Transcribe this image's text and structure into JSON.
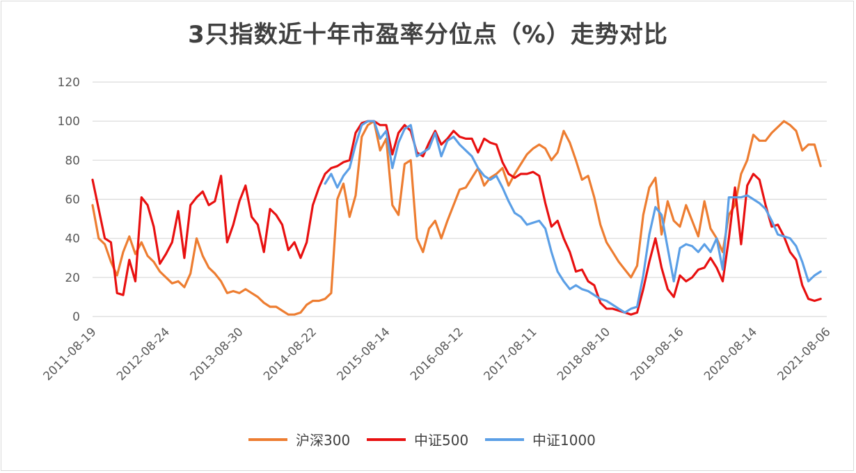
{
  "chart_data": {
    "type": "line",
    "title": "3只指数近十年市盈率分位点（%）走势对比",
    "xlabel": "",
    "ylabel": "",
    "ylim": [
      0,
      120
    ],
    "yticks": [
      "0",
      "20",
      "40",
      "60",
      "80",
      "100",
      "120"
    ],
    "xticks": [
      "2011-08-19",
      "2012-08-24",
      "2013-08-30",
      "2014-08-22",
      "2015-08-14",
      "2016-08-12",
      "2017-08-11",
      "2018-08-10",
      "2019-08-16",
      "2020-08-14",
      "2021-08-06"
    ],
    "grid": true,
    "legend_position": "bottom",
    "x": [
      "2011-08",
      "2011-09",
      "2011-10",
      "2011-11",
      "2011-12",
      "2012-01",
      "2012-02",
      "2012-03",
      "2012-04",
      "2012-05",
      "2012-06",
      "2012-07",
      "2012-08",
      "2012-09",
      "2012-10",
      "2012-11",
      "2012-12",
      "2013-01",
      "2013-02",
      "2013-03",
      "2013-04",
      "2013-05",
      "2013-06",
      "2013-07",
      "2013-08",
      "2013-09",
      "2013-10",
      "2013-11",
      "2013-12",
      "2014-01",
      "2014-02",
      "2014-03",
      "2014-04",
      "2014-05",
      "2014-06",
      "2014-07",
      "2014-08",
      "2014-09",
      "2014-10",
      "2014-11",
      "2014-12",
      "2015-01",
      "2015-02",
      "2015-03",
      "2015-04",
      "2015-05",
      "2015-06",
      "2015-07",
      "2015-08",
      "2015-09",
      "2015-10",
      "2015-11",
      "2015-12",
      "2016-01",
      "2016-02",
      "2016-03",
      "2016-04",
      "2016-05",
      "2016-06",
      "2016-07",
      "2016-08",
      "2016-09",
      "2016-10",
      "2016-11",
      "2016-12",
      "2017-01",
      "2017-02",
      "2017-03",
      "2017-04",
      "2017-05",
      "2017-06",
      "2017-07",
      "2017-08",
      "2017-09",
      "2017-10",
      "2017-11",
      "2017-12",
      "2018-01",
      "2018-02",
      "2018-03",
      "2018-04",
      "2018-05",
      "2018-06",
      "2018-07",
      "2018-08",
      "2018-09",
      "2018-10",
      "2018-11",
      "2018-12",
      "2019-01",
      "2019-02",
      "2019-03",
      "2019-04",
      "2019-05",
      "2019-06",
      "2019-07",
      "2019-08",
      "2019-09",
      "2019-10",
      "2019-11",
      "2019-12",
      "2020-01",
      "2020-02",
      "2020-03",
      "2020-04",
      "2020-05",
      "2020-06",
      "2020-07",
      "2020-08",
      "2020-09",
      "2020-10",
      "2020-11",
      "2020-12",
      "2021-01",
      "2021-02",
      "2021-03",
      "2021-04",
      "2021-05",
      "2021-06",
      "2021-07"
    ],
    "series": [
      {
        "name": "沪深300",
        "color": "#ED7D31",
        "values": [
          57,
          40,
          37,
          28,
          21,
          33,
          41,
          32,
          38,
          31,
          28,
          23,
          20,
          17,
          18,
          15,
          22,
          40,
          31,
          25,
          22,
          18,
          12,
          13,
          12,
          14,
          12,
          10,
          7,
          5,
          5,
          3,
          1,
          1,
          2,
          6,
          8,
          8,
          9,
          12,
          60,
          68,
          51,
          62,
          92,
          98,
          100,
          85,
          91,
          57,
          52,
          78,
          80,
          40,
          33,
          45,
          49,
          40,
          49,
          57,
          65,
          66,
          71,
          76,
          67,
          71,
          73,
          76,
          67,
          73,
          78,
          83,
          86,
          88,
          86,
          80,
          84,
          95,
          89,
          80,
          70,
          72,
          61,
          47,
          38,
          33,
          28,
          24,
          20,
          26,
          52,
          66,
          71,
          42,
          59,
          49,
          46,
          57,
          49,
          41,
          59,
          45,
          40,
          33,
          52,
          57,
          73,
          80,
          93,
          90,
          90,
          94,
          97,
          100,
          98,
          95,
          85,
          88,
          88,
          77
        ]
      },
      {
        "name": "中证500",
        "color": "#E81010",
        "values": [
          70,
          55,
          40,
          38,
          12,
          11,
          29,
          18,
          61,
          57,
          46,
          27,
          32,
          38,
          54,
          30,
          57,
          61,
          64,
          57,
          59,
          72,
          38,
          47,
          59,
          67,
          51,
          47,
          33,
          55,
          52,
          47,
          34,
          38,
          30,
          38,
          57,
          66,
          73,
          76,
          77,
          79,
          80,
          94,
          99,
          100,
          100,
          98,
          98,
          83,
          94,
          98,
          95,
          84,
          82,
          89,
          95,
          88,
          91,
          95,
          92,
          91,
          91,
          84,
          91,
          89,
          88,
          79,
          73,
          71,
          73,
          73,
          74,
          72,
          58,
          46,
          49,
          40,
          33,
          23,
          24,
          18,
          16,
          7,
          4,
          4,
          3,
          2,
          1,
          2,
          14,
          28,
          40,
          25,
          14,
          10,
          21,
          18,
          20,
          24,
          25,
          30,
          25,
          18,
          40,
          66,
          37,
          67,
          73,
          70,
          57,
          46,
          47,
          41,
          33,
          29,
          16,
          9,
          8,
          9
        ]
      },
      {
        "name": "中证1000",
        "color": "#5B9FE6",
        "values": [
          null,
          null,
          null,
          null,
          null,
          null,
          null,
          null,
          null,
          null,
          null,
          null,
          null,
          null,
          null,
          null,
          null,
          null,
          null,
          null,
          null,
          null,
          null,
          null,
          null,
          null,
          null,
          null,
          null,
          null,
          null,
          null,
          null,
          null,
          null,
          null,
          null,
          null,
          68,
          73,
          66,
          72,
          76,
          88,
          98,
          100,
          100,
          91,
          95,
          76,
          89,
          96,
          98,
          82,
          84,
          86,
          94,
          82,
          90,
          92,
          88,
          85,
          82,
          76,
          72,
          70,
          72,
          66,
          59,
          53,
          51,
          47,
          48,
          49,
          45,
          33,
          23,
          18,
          14,
          16,
          14,
          13,
          11,
          9,
          8,
          6,
          4,
          2,
          4,
          5,
          21,
          42,
          56,
          52,
          35,
          18,
          35,
          37,
          36,
          33,
          37,
          33,
          40,
          24,
          61,
          61,
          61,
          62,
          60,
          58,
          55,
          49,
          42,
          41,
          40,
          36,
          28,
          18,
          21,
          23
        ]
      }
    ]
  }
}
